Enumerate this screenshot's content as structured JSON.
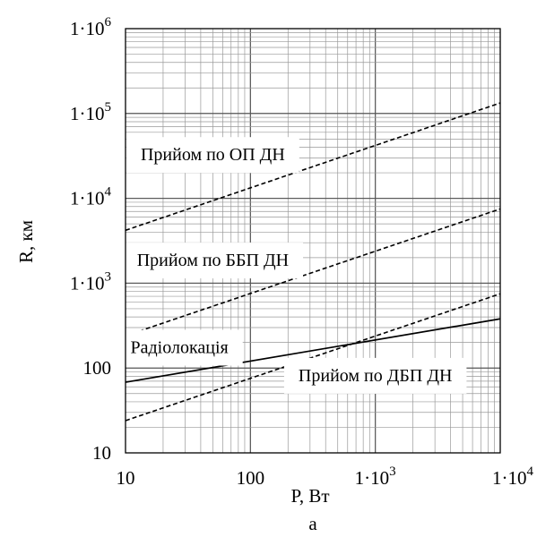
{
  "chart_data": {
    "type": "line",
    "title": "",
    "xlabel": "P, Вт",
    "ylabel": "R, км",
    "caption": "а",
    "xscale": "log",
    "yscale": "log",
    "xlim": [
      10,
      10000
    ],
    "ylim": [
      10,
      1000000
    ],
    "grid": true,
    "x_ticks": [
      {
        "value": 10,
        "mantissa": "10",
        "exp": ""
      },
      {
        "value": 100,
        "mantissa": "100",
        "exp": ""
      },
      {
        "value": 1000,
        "mantissa": "1·10",
        "exp": "3"
      },
      {
        "value": 10000,
        "mantissa": "1·10",
        "exp": "4"
      }
    ],
    "y_ticks": [
      {
        "value": 10,
        "mantissa": "10",
        "exp": ""
      },
      {
        "value": 100,
        "mantissa": "100",
        "exp": ""
      },
      {
        "value": 1000,
        "mantissa": "1·10",
        "exp": "3"
      },
      {
        "value": 10000,
        "mantissa": "1·10",
        "exp": "4"
      },
      {
        "value": 100000,
        "mantissa": "1·10",
        "exp": "5"
      },
      {
        "value": 1000000,
        "mantissa": "1·10",
        "exp": "6"
      }
    ],
    "series": [
      {
        "style": "dashed",
        "x": [
          10,
          10000
        ],
        "y": [
          4200,
          133000
        ]
      },
      {
        "style": "dashed",
        "x": [
          10,
          10000
        ],
        "y": [
          240,
          7500
        ]
      },
      {
        "style": "dashed",
        "x": [
          10,
          10000
        ],
        "y": [
          24,
          750
        ]
      },
      {
        "style": "solid",
        "x": [
          10,
          10000
        ],
        "y": [
          68,
          380
        ]
      }
    ],
    "annotations": [
      {
        "text": "Прийом по ОП ДН",
        "x": 50,
        "y": 28000
      },
      {
        "text": "Прийом по ББП ДН",
        "x": 50,
        "y": 1600
      },
      {
        "text": "Радіолокація",
        "x": 27,
        "y": 150
      },
      {
        "text": "Прийом по ДБП ДН",
        "x": 1000,
        "y": 70
      }
    ]
  }
}
